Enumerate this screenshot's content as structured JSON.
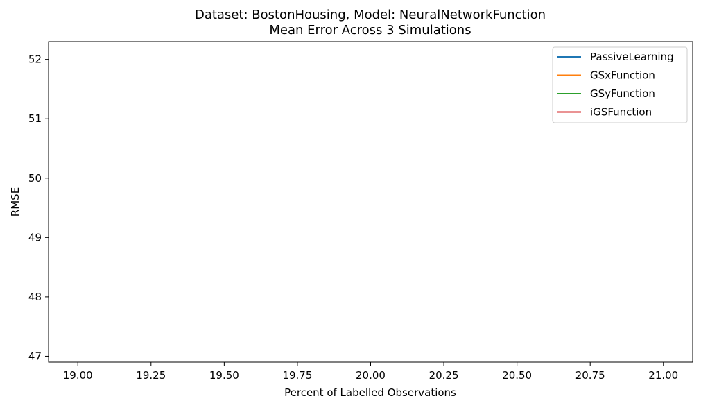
{
  "chart_data": {
    "type": "line",
    "title": "Dataset: BostonHousing, Model: NeuralNetworkFunction",
    "subtitle": "Mean Error Across 3 Simulations",
    "xlabel": "Percent of Labelled Observations",
    "ylabel": "RMSE",
    "xlim": [
      18.9,
      21.1
    ],
    "ylim": [
      46.9,
      52.3
    ],
    "x_ticks": [
      19.0,
      19.25,
      19.5,
      19.75,
      20.0,
      20.25,
      20.5,
      20.75,
      21.0
    ],
    "x_tick_labels": [
      "19.00",
      "19.25",
      "19.50",
      "19.75",
      "20.00",
      "20.25",
      "20.50",
      "20.75",
      "21.00"
    ],
    "y_ticks": [
      47,
      48,
      49,
      50,
      51,
      52
    ],
    "y_tick_labels": [
      "47",
      "48",
      "49",
      "50",
      "51",
      "52"
    ],
    "grid": false,
    "legend_position": "top-right",
    "series": [
      {
        "name": "PassiveLearning",
        "color": "#1f77b4",
        "x": [],
        "y": []
      },
      {
        "name": "GSxFunction",
        "color": "#ff7f0e",
        "x": [],
        "y": []
      },
      {
        "name": "GSyFunction",
        "color": "#2ca02c",
        "x": [],
        "y": []
      },
      {
        "name": "iGSFunction",
        "color": "#d62728",
        "x": [],
        "y": []
      }
    ]
  }
}
